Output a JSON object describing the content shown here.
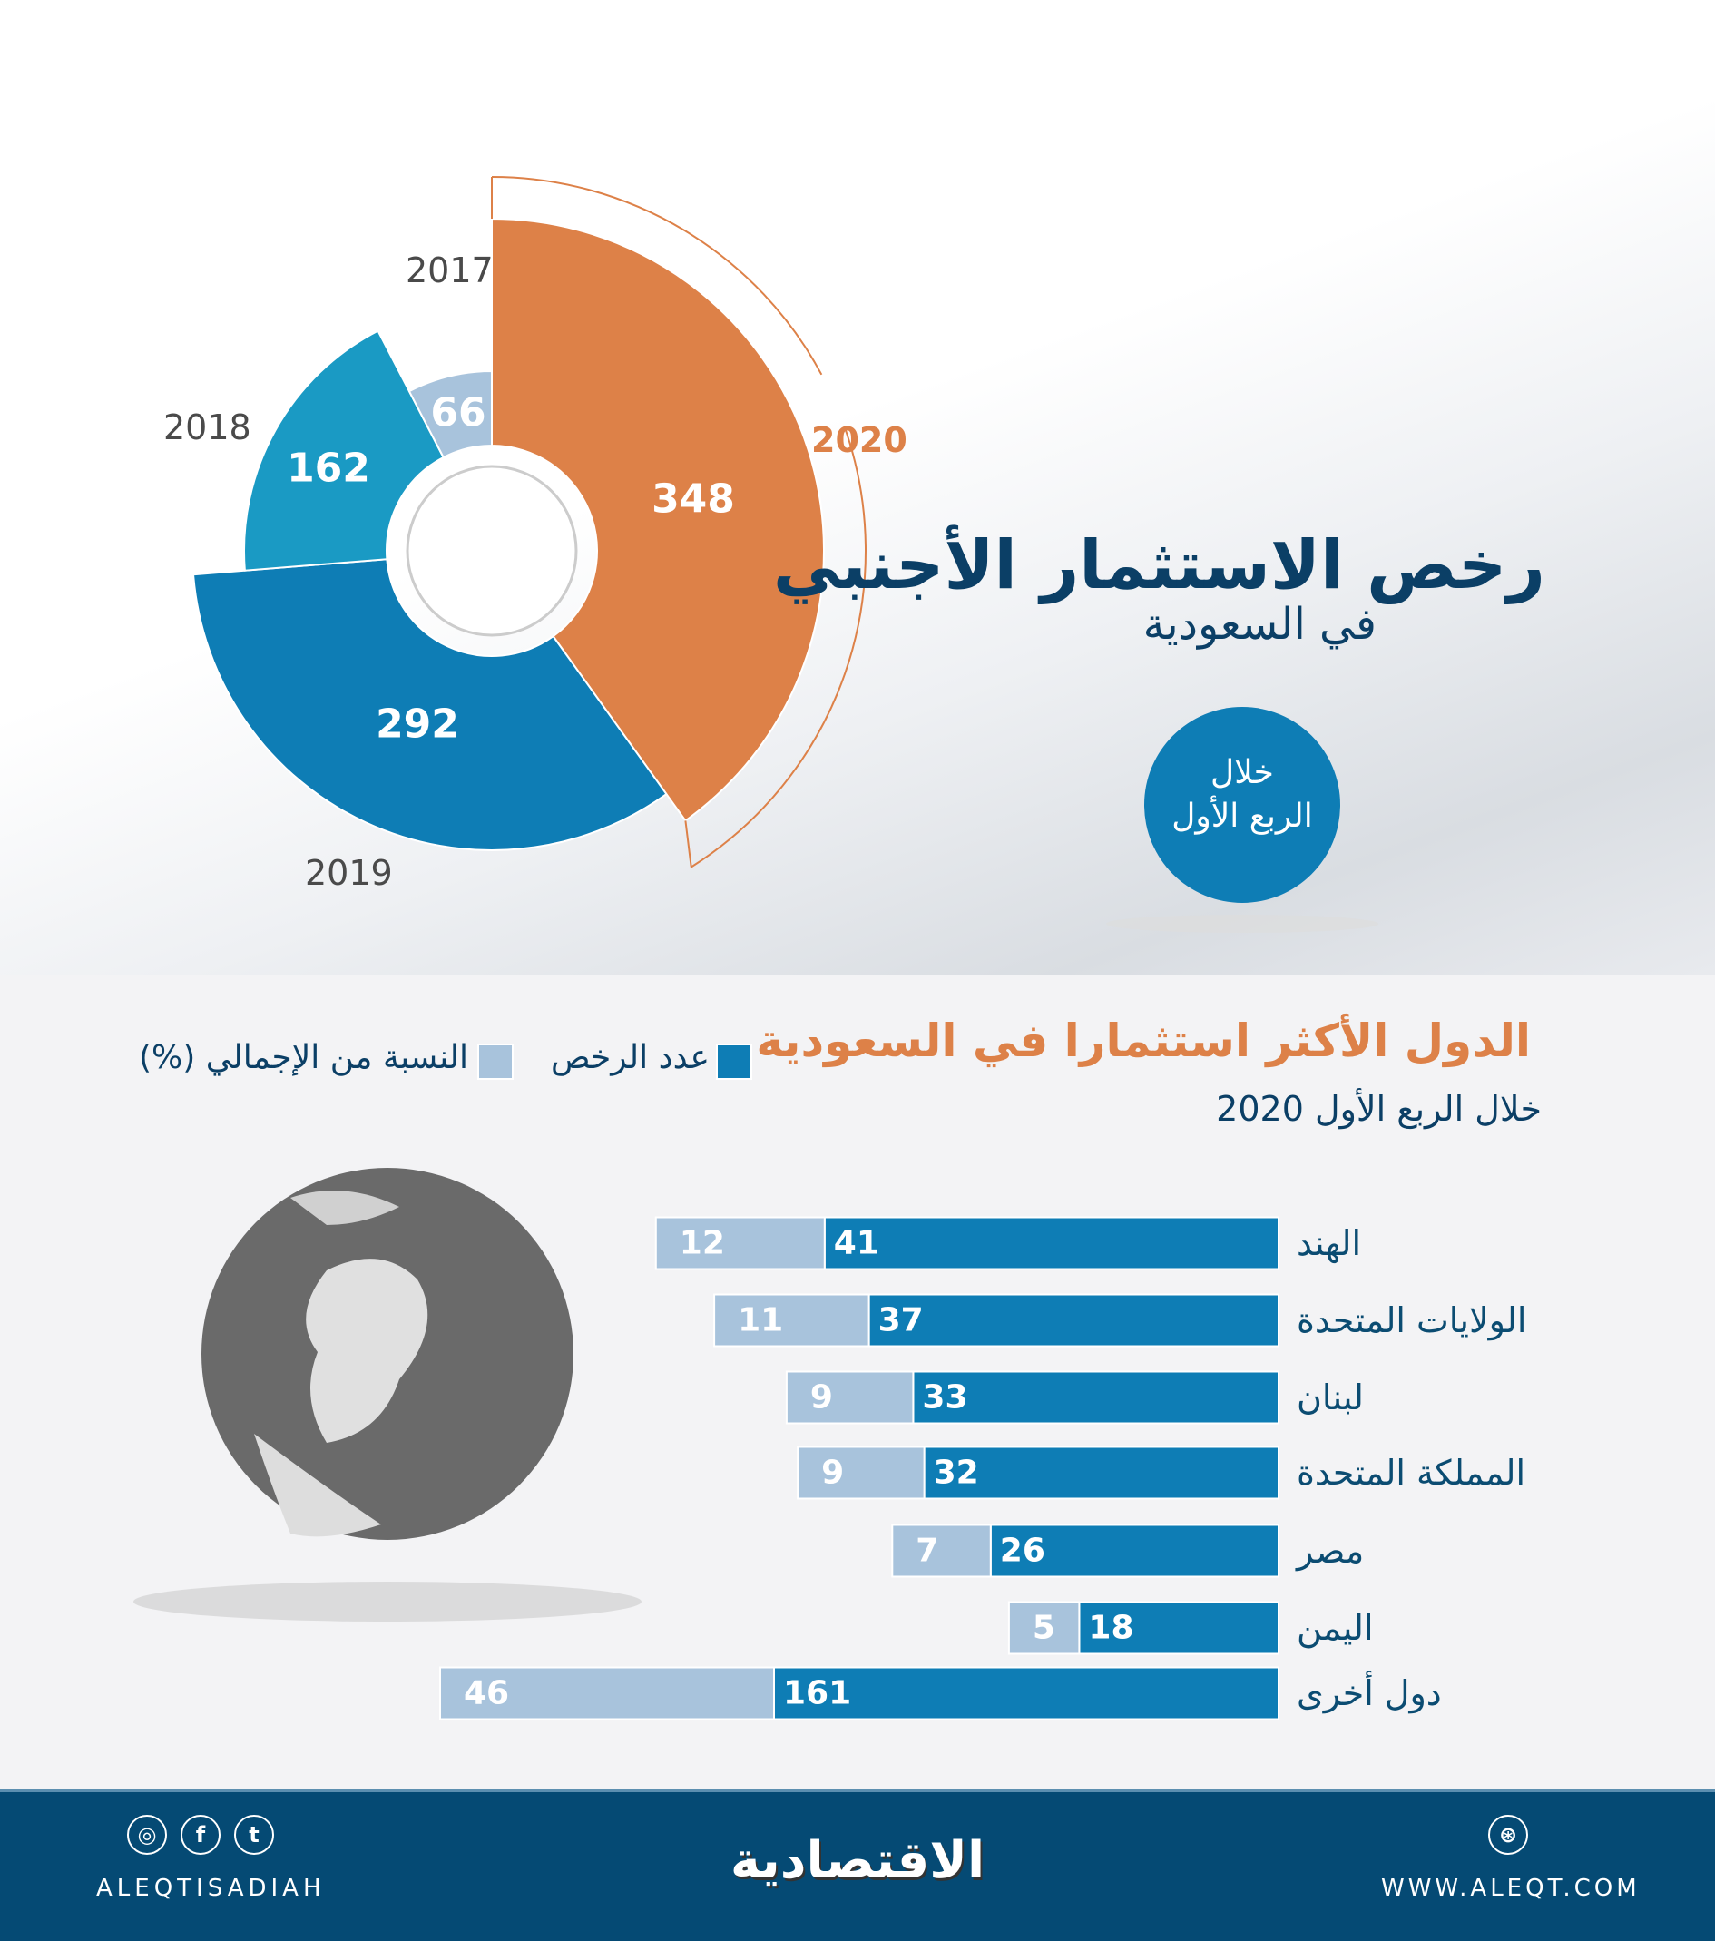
{
  "header": {
    "title": "رخص الاستثمار الأجنبي",
    "subtitle": "في السعودية",
    "badge_line1": "خلال",
    "badge_line2": "الربع الأول"
  },
  "colors": {
    "orange": "#dd8148",
    "dark_blue": "#0e7db5",
    "mid_blue": "#1a9ac4",
    "light_blue": "#a8c3dc",
    "navy": "#054a74"
  },
  "chart_data": [
    {
      "type": "pie",
      "variant": "radial-donut",
      "title": "رخص الاستثمار الأجنبي",
      "categories": [
        "2020",
        "2019",
        "2018",
        "2017"
      ],
      "values": [
        348,
        292,
        162,
        66
      ],
      "highlight": "2020"
    },
    {
      "type": "bar",
      "orientation": "horizontal",
      "stacked": true,
      "title": "الدول الأكثر استثمارا في السعودية",
      "subtitle": "خلال الربع الأول 2020",
      "categories": [
        "الهند",
        "الولايات المتحدة",
        "لبنان",
        "المملكة المتحدة",
        "مصر",
        "اليمن",
        "دول أخرى"
      ],
      "series": [
        {
          "name": "عدد الرخص",
          "values": [
            41,
            37,
            33,
            32,
            26,
            18,
            161
          ]
        },
        {
          "name": "النسبة من الإجمالي (%)",
          "values": [
            12,
            11,
            9,
            9,
            7,
            5,
            46
          ]
        }
      ],
      "legend": "top"
    }
  ],
  "legend": {
    "count": "عدد الرخص",
    "share": "النسبة من الإجمالي (%)"
  },
  "footer": {
    "social_handle": "ALEQTISADIAH",
    "logo": "الاقتصادية",
    "website": "WWW.ALEQT.COM",
    "icons": [
      "instagram-icon",
      "facebook-icon",
      "twitter-icon",
      "dribbble-icon"
    ]
  }
}
